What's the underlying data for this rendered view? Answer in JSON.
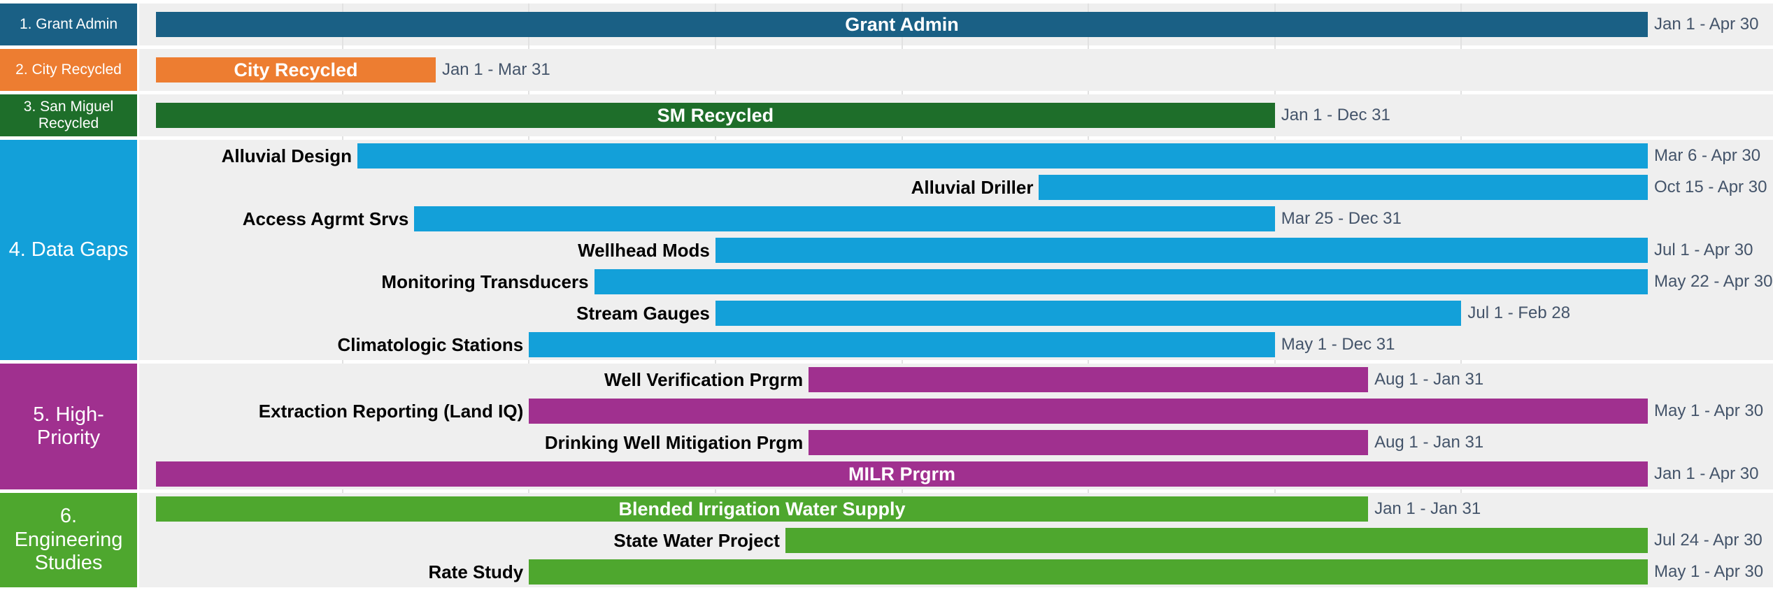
{
  "chart_data": {
    "type": "gantt",
    "xlim": [
      0,
      16
    ],
    "xticks": [
      2,
      4,
      6,
      8,
      10,
      12,
      14
    ],
    "grid": true,
    "groups": [
      {
        "name": "1. Grant Admin",
        "color": "#1a6085",
        "tasks": [
          {
            "name": "Grant Admin",
            "start": 0,
            "end": 16,
            "range": "Jan 1 - Apr 30",
            "label_inside": true
          }
        ]
      },
      {
        "name": "2. City Recycled",
        "color": "#ed7d31",
        "tasks": [
          {
            "name": "City Recycled",
            "start": 0,
            "end": 3,
            "range": "Jan 1 - Mar 31",
            "label_inside": true
          }
        ]
      },
      {
        "name": "3. San Miguel Recycled",
        "color": "#1e6e2a",
        "tasks": [
          {
            "name": "SM Recycled",
            "start": 0,
            "end": 12,
            "range": "Jan 1 - Dec 31",
            "label_inside": true
          }
        ]
      },
      {
        "name": "4. Data Gaps",
        "color": "#13a0d9",
        "tasks": [
          {
            "name": "Alluvial Design",
            "start": 2.16,
            "end": 16,
            "range": "Mar 6 - Apr 30",
            "label_inside": false
          },
          {
            "name": "Alluvial Driller",
            "start": 9.47,
            "end": 16,
            "range": "Oct 15 - Apr 30",
            "label_inside": false
          },
          {
            "name": "Access Agrmt Srvs",
            "start": 2.77,
            "end": 12,
            "range": "Mar 25 - Dec 31",
            "label_inside": false
          },
          {
            "name": "Wellhead Mods",
            "start": 6,
            "end": 16,
            "range": "Jul 1 - Apr 30",
            "label_inside": false
          },
          {
            "name": "Monitoring Transducers",
            "start": 4.7,
            "end": 16,
            "range": "May 22 - Apr 30",
            "label_inside": false
          },
          {
            "name": "Stream Gauges",
            "start": 6,
            "end": 14,
            "range": "Jul 1 - Feb 28",
            "label_inside": false
          },
          {
            "name": "Climatologic Stations",
            "start": 4,
            "end": 12,
            "range": "May 1 - Dec 31",
            "label_inside": false
          }
        ]
      },
      {
        "name": "5. High-Priority",
        "color": "#a0308f",
        "tasks": [
          {
            "name": "Well Verification Prgrm",
            "start": 7,
            "end": 13,
            "range": "Aug 1 - Jan 31",
            "label_inside": false
          },
          {
            "name": "Extraction Reporting (Land IQ)",
            "start": 4,
            "end": 16,
            "range": "May 1 - Apr 30",
            "label_inside": false
          },
          {
            "name": "Drinking Well Mitigation Prgm",
            "start": 7,
            "end": 13,
            "range": "Aug 1 - Jan 31",
            "label_inside": false
          },
          {
            "name": "MILR Prgrm",
            "start": 0,
            "end": 16,
            "range": "Jan 1 - Apr 30",
            "label_inside": true
          }
        ]
      },
      {
        "name": "6. Engineering Studies",
        "color": "#4ea72e",
        "tasks": [
          {
            "name": "Blended Irrigation Water Supply",
            "start": 0,
            "end": 13,
            "range": "Jan 1 - Jan 31",
            "label_inside": true
          },
          {
            "name": "State Water Project",
            "start": 6.75,
            "end": 16,
            "range": "Jul 24 - Apr 30",
            "label_inside": false
          },
          {
            "name": "Rate Study",
            "start": 4,
            "end": 16,
            "range": "May 1 - Apr 30",
            "label_inside": false
          }
        ]
      }
    ]
  }
}
